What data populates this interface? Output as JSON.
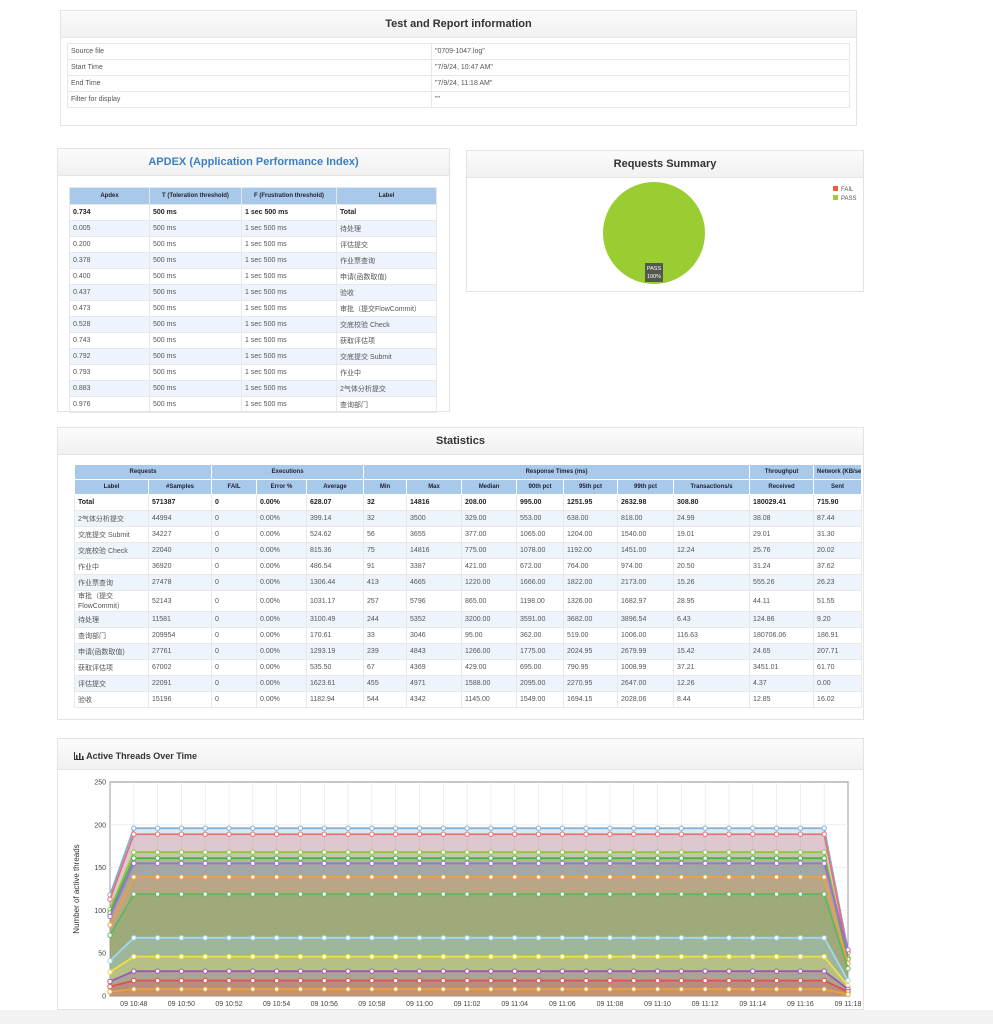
{
  "report_info": {
    "title": "Test and Report information",
    "rows": [
      [
        "Source file",
        "\"0709-1047.log\""
      ],
      [
        "Start Time",
        "\"7/9/24, 10:47 AM\""
      ],
      [
        "End Time",
        "\"7/9/24, 11:18 AM\""
      ],
      [
        "Filter for display",
        "\"\""
      ]
    ]
  },
  "apdex": {
    "title": "APDEX (Application Performance Index)",
    "columns": [
      "Apdex",
      "T (Toleration threshold)",
      "F (Frustration threshold)",
      "Label"
    ],
    "rows": [
      [
        "0.734",
        "500 ms",
        "1 sec 500 ms",
        "Total"
      ],
      [
        "0.005",
        "500 ms",
        "1 sec 500 ms",
        "待处理"
      ],
      [
        "0.200",
        "500 ms",
        "1 sec 500 ms",
        "评估提交"
      ],
      [
        "0.378",
        "500 ms",
        "1 sec 500 ms",
        "作业票查询"
      ],
      [
        "0.400",
        "500 ms",
        "1 sec 500 ms",
        "申请(函数取值)"
      ],
      [
        "0.437",
        "500 ms",
        "1 sec 500 ms",
        "验收"
      ],
      [
        "0.473",
        "500 ms",
        "1 sec 500 ms",
        "审批（提交FlowCommit）"
      ],
      [
        "0.528",
        "500 ms",
        "1 sec 500 ms",
        "交底校验 Check"
      ],
      [
        "0.743",
        "500 ms",
        "1 sec 500 ms",
        "获取评估项"
      ],
      [
        "0.792",
        "500 ms",
        "1 sec 500 ms",
        "交底提交 Submit"
      ],
      [
        "0.793",
        "500 ms",
        "1 sec 500 ms",
        "作业中"
      ],
      [
        "0.883",
        "500 ms",
        "1 sec 500 ms",
        "2气体分析提交"
      ],
      [
        "0.976",
        "500 ms",
        "1 sec 500 ms",
        "查询部门"
      ]
    ]
  },
  "statistics": {
    "title": "Statistics",
    "groups": [
      "Requests",
      "Executions",
      "Response Times (ms)",
      "Throughput",
      "Network (KB/sec)"
    ],
    "columns": [
      "Label",
      "#Samples",
      "FAIL",
      "Error %",
      "Average",
      "Min",
      "Max",
      "Median",
      "90th pct",
      "95th pct",
      "99th pct",
      "Transactions/s",
      "Received",
      "Sent"
    ],
    "rows": [
      [
        "Total",
        "571387",
        "0",
        "0.00%",
        "628.07",
        "32",
        "14816",
        "208.00",
        "995.00",
        "1251.95",
        "2632.98",
        "308.80",
        "180029.41",
        "715.90"
      ],
      [
        "2气体分析提交",
        "44994",
        "0",
        "0.00%",
        "399.14",
        "32",
        "3500",
        "329.00",
        "553.00",
        "638.00",
        "818.00",
        "24.99",
        "38.08",
        "87.44"
      ],
      [
        "交底提交 Submit",
        "34227",
        "0",
        "0.00%",
        "524.62",
        "56",
        "3655",
        "377.00",
        "1065.00",
        "1204.00",
        "1540.00",
        "19.01",
        "29.01",
        "31.30"
      ],
      [
        "交底校验 Check",
        "22040",
        "0",
        "0.00%",
        "815.36",
        "75",
        "14816",
        "775.00",
        "1078.00",
        "1192.00",
        "1451.00",
        "12.24",
        "25.76",
        "20.02"
      ],
      [
        "作业中",
        "36920",
        "0",
        "0.00%",
        "486.54",
        "91",
        "3387",
        "421.00",
        "672.00",
        "764.00",
        "974.00",
        "20.50",
        "31.24",
        "37.62"
      ],
      [
        "作业票查询",
        "27478",
        "0",
        "0.00%",
        "1306.44",
        "413",
        "4665",
        "1220.00",
        "1666.00",
        "1822.00",
        "2173.00",
        "15.26",
        "555.26",
        "26.23"
      ],
      [
        "审批（提交FlowCommit）",
        "52143",
        "0",
        "0.00%",
        "1031.17",
        "257",
        "5796",
        "865.00",
        "1198.00",
        "1326.00",
        "1682.97",
        "28.95",
        "44.11",
        "51.55"
      ],
      [
        "待处理",
        "11581",
        "0",
        "0.00%",
        "3100.49",
        "244",
        "5352",
        "3200.00",
        "3591.00",
        "3682.00",
        "3896.54",
        "6.43",
        "124.86",
        "9.20"
      ],
      [
        "查询部门",
        "209954",
        "0",
        "0.00%",
        "170.61",
        "33",
        "3046",
        "95.00",
        "362.00",
        "519.00",
        "1006.00",
        "116.63",
        "180706.06",
        "186.91"
      ],
      [
        "申请(函数取值)",
        "27761",
        "0",
        "0.00%",
        "1293.19",
        "239",
        "4843",
        "1266.00",
        "1775.00",
        "2024.95",
        "2679.99",
        "15.42",
        "24.65",
        "207.71"
      ],
      [
        "获取评估项",
        "67002",
        "0",
        "0.00%",
        "535.50",
        "67",
        "4369",
        "429.00",
        "695.00",
        "790.95",
        "1008.99",
        "37.21",
        "3451.01",
        "61.70"
      ],
      [
        "评估提交",
        "22091",
        "0",
        "0.00%",
        "1623.61",
        "455",
        "4971",
        "1588.00",
        "2095.00",
        "2270.95",
        "2647.00",
        "12.26",
        "4.37",
        "0.00"
      ],
      [
        "验收",
        "15196",
        "0",
        "0.00%",
        "1182.94",
        "544",
        "4342",
        "1145.00",
        "1549.00",
        "1694.15",
        "2028.06",
        "8.44",
        "12.85",
        "16.02"
      ]
    ]
  },
  "chart_data": [
    {
      "type": "pie",
      "title": "Requests Summary",
      "categories": [
        "FAIL",
        "PASS"
      ],
      "values": [
        0,
        100
      ],
      "value_labels": [
        null,
        "100%"
      ],
      "colors": [
        "#e8603c",
        "#9acd32"
      ]
    },
    {
      "type": "line",
      "title": "Active Threads Over Time",
      "y_label": "Number of active threads",
      "ylim": [
        0,
        250
      ],
      "yticks": [
        0,
        50,
        100,
        150,
        200,
        250
      ],
      "grid": true,
      "categories": [
        null,
        "09 10:48",
        null,
        "09 10:50",
        null,
        "09 10:52",
        null,
        "09 10:54",
        null,
        "09 10:56",
        null,
        "09 10:58",
        null,
        "09 11:00",
        null,
        "09 11:02",
        null,
        "09 11:04",
        null,
        "09 11:06",
        null,
        "09 11:08",
        null,
        "09 11:10",
        null,
        "09 11:12",
        null,
        "09 11:14",
        null,
        "09 11:16",
        null,
        "09 11:18"
      ],
      "series": [
        {
          "color": "#7fb0d8",
          "values": [
            118,
            196,
            196,
            196,
            196,
            196,
            196,
            196,
            196,
            196,
            196,
            196,
            196,
            196,
            196,
            196,
            196,
            196,
            196,
            196,
            196,
            196,
            196,
            196,
            196,
            196,
            196,
            196,
            196,
            196,
            196,
            53
          ]
        },
        {
          "color": "#e57373",
          "values": [
            113,
            189,
            189,
            189,
            189,
            189,
            189,
            189,
            189,
            189,
            189,
            189,
            189,
            189,
            189,
            189,
            189,
            189,
            189,
            189,
            189,
            189,
            189,
            189,
            189,
            189,
            189,
            189,
            189,
            189,
            189,
            51
          ]
        },
        {
          "color": "#8cc63f",
          "values": [
            101,
            168,
            168,
            168,
            168,
            168,
            168,
            168,
            168,
            168,
            168,
            168,
            168,
            168,
            168,
            168,
            168,
            168,
            168,
            168,
            168,
            168,
            168,
            168,
            168,
            168,
            168,
            168,
            168,
            168,
            168,
            45
          ]
        },
        {
          "color": "#4caf50",
          "values": [
            97,
            161,
            161,
            161,
            161,
            161,
            161,
            161,
            161,
            161,
            161,
            161,
            161,
            161,
            161,
            161,
            161,
            161,
            161,
            161,
            161,
            161,
            161,
            161,
            161,
            161,
            161,
            161,
            161,
            161,
            161,
            43
          ]
        },
        {
          "color": "#a66cd8",
          "values": [
            93,
            155,
            155,
            155,
            155,
            155,
            155,
            155,
            155,
            155,
            155,
            155,
            155,
            155,
            155,
            155,
            155,
            155,
            155,
            155,
            155,
            155,
            155,
            155,
            155,
            155,
            155,
            155,
            155,
            155,
            155,
            54
          ]
        },
        {
          "color": "#f0a040",
          "values": [
            83,
            139,
            139,
            139,
            139,
            139,
            139,
            139,
            139,
            139,
            139,
            139,
            139,
            139,
            139,
            139,
            139,
            139,
            139,
            139,
            139,
            139,
            139,
            139,
            139,
            139,
            139,
            139,
            139,
            139,
            139,
            38
          ]
        },
        {
          "color": "#5cb85c",
          "values": [
            71,
            119,
            119,
            119,
            119,
            119,
            119,
            119,
            119,
            119,
            119,
            119,
            119,
            119,
            119,
            119,
            119,
            119,
            119,
            119,
            119,
            119,
            119,
            119,
            119,
            119,
            119,
            119,
            119,
            119,
            119,
            32
          ]
        },
        {
          "color": "#9fd8ef",
          "values": [
            41,
            68,
            68,
            68,
            68,
            68,
            68,
            68,
            68,
            68,
            68,
            68,
            68,
            68,
            68,
            68,
            68,
            68,
            68,
            68,
            68,
            68,
            68,
            68,
            68,
            68,
            68,
            68,
            68,
            68,
            68,
            18
          ]
        },
        {
          "color": "#f2dc4c",
          "values": [
            28,
            46,
            46,
            46,
            46,
            46,
            46,
            46,
            46,
            46,
            46,
            46,
            46,
            46,
            46,
            46,
            46,
            46,
            46,
            46,
            46,
            46,
            46,
            46,
            46,
            46,
            46,
            46,
            46,
            46,
            46,
            12
          ]
        },
        {
          "color": "#9b59b6",
          "values": [
            17,
            29,
            29,
            29,
            29,
            29,
            29,
            29,
            29,
            29,
            29,
            29,
            29,
            29,
            29,
            29,
            29,
            29,
            29,
            29,
            29,
            29,
            29,
            29,
            29,
            29,
            29,
            29,
            29,
            29,
            29,
            8
          ]
        },
        {
          "color": "#d9534f",
          "values": [
            11,
            18,
            18,
            18,
            18,
            18,
            18,
            18,
            18,
            18,
            18,
            18,
            18,
            18,
            18,
            18,
            18,
            18,
            18,
            18,
            18,
            18,
            18,
            18,
            18,
            18,
            18,
            18,
            18,
            18,
            18,
            5
          ]
        },
        {
          "color": "#e8a33a",
          "values": [
            5,
            8,
            8,
            8,
            8,
            8,
            8,
            8,
            8,
            8,
            8,
            8,
            8,
            8,
            8,
            8,
            8,
            8,
            8,
            8,
            8,
            8,
            8,
            8,
            8,
            8,
            8,
            8,
            8,
            8,
            8,
            2
          ]
        }
      ]
    }
  ]
}
